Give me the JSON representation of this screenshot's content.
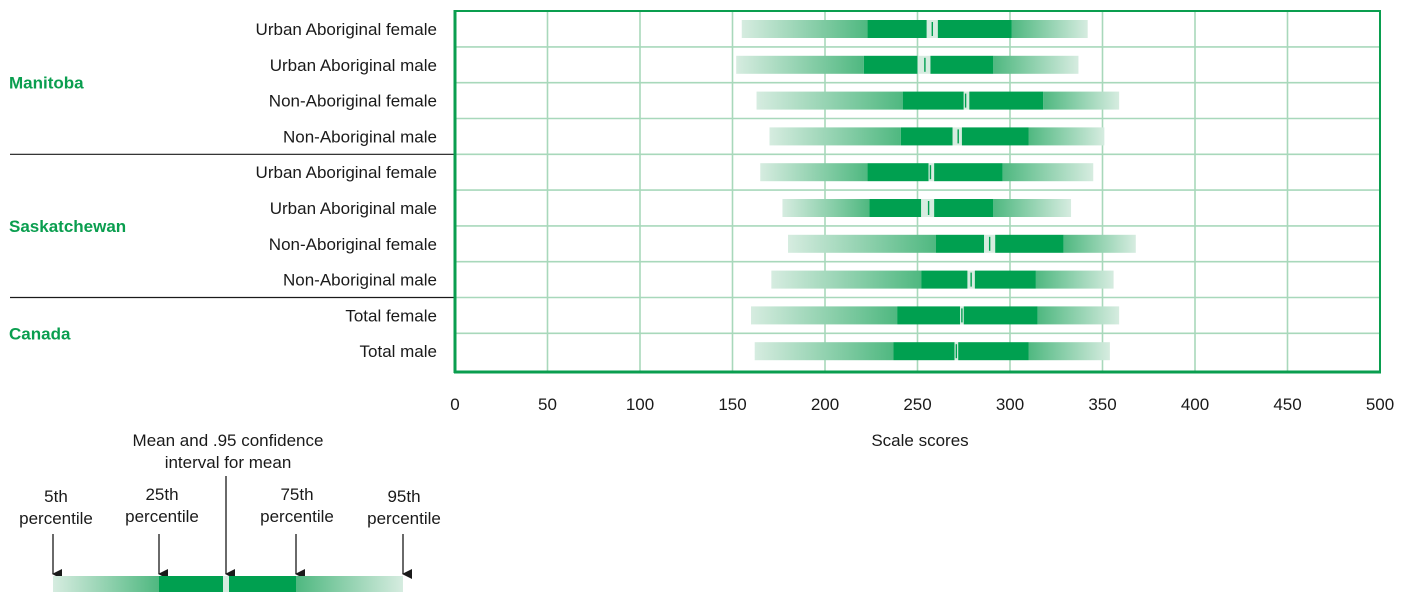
{
  "chart_data": {
    "type": "bar",
    "subtype": "percentile-range",
    "xlabel": "Scale scores",
    "xlim": [
      0,
      500
    ],
    "xticks": [
      0,
      50,
      100,
      150,
      200,
      250,
      300,
      350,
      400,
      450,
      500
    ],
    "grid": true,
    "colors": {
      "axis": "#0a9e4f",
      "grid": "#a8d8bb",
      "solid": "#00a050",
      "light": "#d6ece0",
      "label_group": "#0a9e4f"
    },
    "groups": [
      {
        "name": "Manitoba",
        "rows": [
          {
            "label": "Urban Aboriginal female",
            "p5": 155,
            "p25": 223,
            "mean": 258,
            "ci_low": 255,
            "ci_high": 261,
            "p75": 301,
            "p95": 342
          },
          {
            "label": "Urban Aboriginal male",
            "p5": 152,
            "p25": 221,
            "mean": 254,
            "ci_low": 250,
            "ci_high": 257,
            "p75": 291,
            "p95": 337
          },
          {
            "label": "Non-Aboriginal female",
            "p5": 163,
            "p25": 242,
            "mean": 276,
            "ci_low": 275,
            "ci_high": 278,
            "p75": 318,
            "p95": 359
          },
          {
            "label": "Non-Aboriginal male",
            "p5": 170,
            "p25": 241,
            "mean": 272,
            "ci_low": 269,
            "ci_high": 274,
            "p75": 310,
            "p95": 351
          }
        ]
      },
      {
        "name": "Saskatchewan",
        "rows": [
          {
            "label": "Urban Aboriginal female",
            "p5": 165,
            "p25": 223,
            "mean": 257,
            "ci_low": 256,
            "ci_high": 259,
            "p75": 296,
            "p95": 345
          },
          {
            "label": "Urban Aboriginal male",
            "p5": 177,
            "p25": 224,
            "mean": 256,
            "ci_low": 252,
            "ci_high": 259,
            "p75": 291,
            "p95": 333
          },
          {
            "label": "Non-Aboriginal female",
            "p5": 180,
            "p25": 260,
            "mean": 289,
            "ci_low": 286,
            "ci_high": 292,
            "p75": 329,
            "p95": 368
          },
          {
            "label": "Non-Aboriginal male",
            "p5": 171,
            "p25": 252,
            "mean": 279,
            "ci_low": 277,
            "ci_high": 281,
            "p75": 314,
            "p95": 356
          }
        ]
      },
      {
        "name": "Canada",
        "rows": [
          {
            "label": "Total female",
            "p5": 160,
            "p25": 239,
            "mean": 274,
            "ci_low": 273,
            "ci_high": 275,
            "p75": 315,
            "p95": 359
          },
          {
            "label": "Total male",
            "p5": 162,
            "p25": 237,
            "mean": 271,
            "ci_low": 270,
            "ci_high": 272,
            "p75": 310,
            "p95": 354
          }
        ]
      }
    ]
  },
  "legend": {
    "mean_label_line1": "Mean and .95 confidence",
    "mean_label_line2": "interval for mean",
    "p5_line1": "5th",
    "p5_line2": "percentile",
    "p25_line1": "25th",
    "p25_line2": "percentile",
    "p75_line1": "75th",
    "p75_line2": "percentile",
    "p95_line1": "95th",
    "p95_line2": "percentile"
  }
}
